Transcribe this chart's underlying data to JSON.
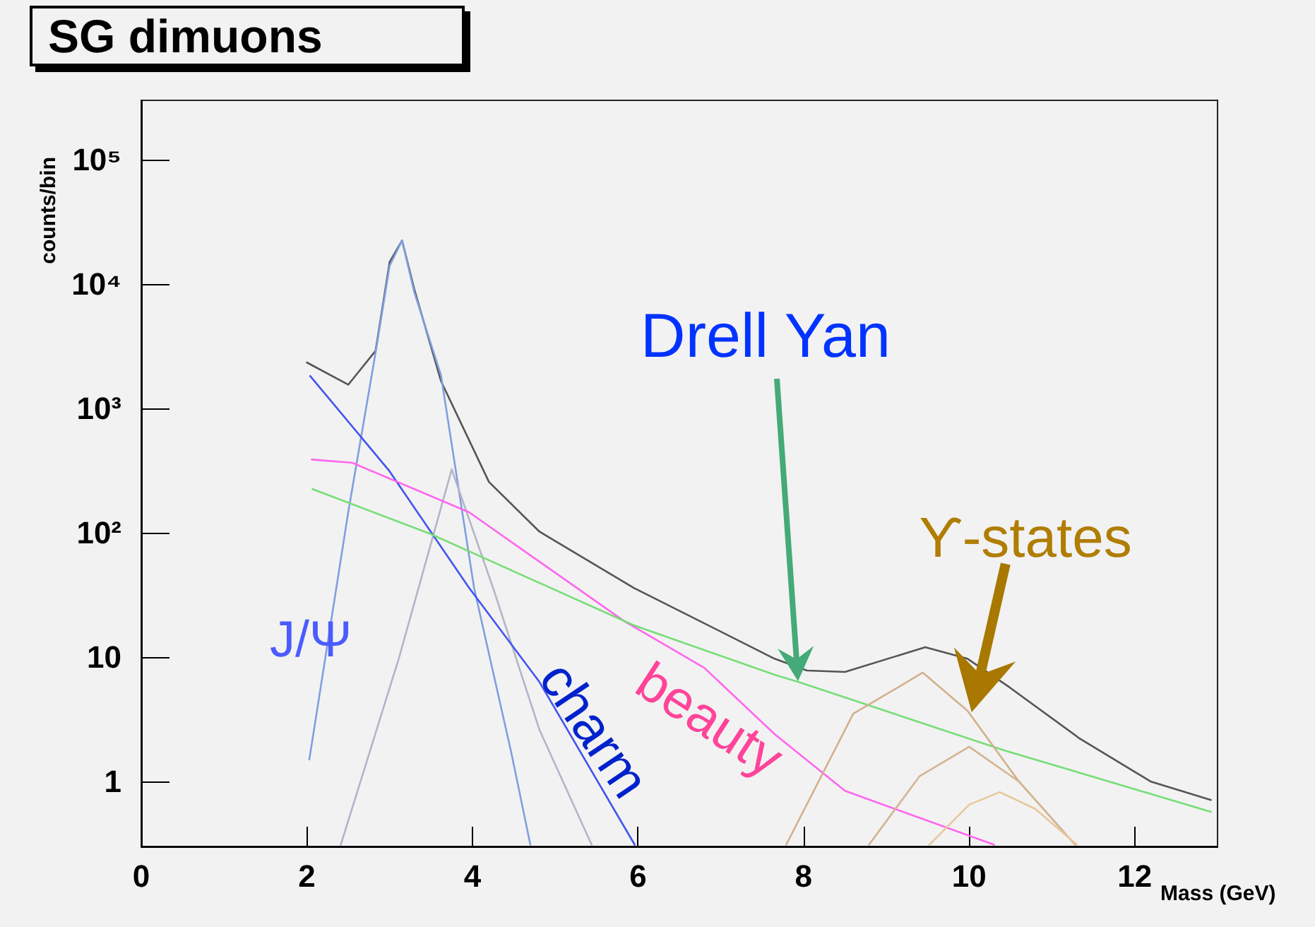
{
  "chart_data": {
    "type": "line",
    "title": "SG dimuons",
    "xlabel": "Mass (GeV)",
    "ylabel": "counts/bin",
    "log": "y",
    "grid": false,
    "marker": "none",
    "line_style": "solid",
    "xlim": [
      0,
      13
    ],
    "xticks": [
      0,
      2,
      4,
      6,
      8,
      10,
      12
    ],
    "ylim": [
      0.3,
      300000
    ],
    "yticks": [
      1,
      10,
      {
        "value": 100,
        "label": "10²"
      },
      {
        "value": 1000,
        "label": "10³"
      },
      {
        "value": 10000,
        "label": "10⁴"
      },
      {
        "value": 100000,
        "label": "10⁵"
      }
    ],
    "series": [
      {
        "color": "#555555",
        "x": [
          2.0,
          2.5,
          2.83,
          3.0,
          3.15,
          3.3,
          3.62,
          4.2,
          4.81,
          5.95,
          7.65,
          8.04,
          8.5,
          9.47,
          9.98,
          10.49,
          11.34,
          12.19,
          12.92
        ],
        "values": [
          2340,
          1550,
          2900,
          15000,
          22400,
          9000,
          1660,
          256,
          102,
          36,
          9.7,
          7.8,
          7.6,
          12,
          9.7,
          5.7,
          2.2,
          1.0,
          0.71
        ]
      },
      {
        "color": "#809ee0",
        "x": [
          2.03,
          2.5,
          2.83,
          3.0,
          3.15,
          3.3,
          3.62,
          4.02,
          4.47,
          4.7
        ],
        "values": [
          1.5,
          146,
          2800,
          14000,
          22400,
          8500,
          1850,
          36,
          1.7,
          0.31
        ]
      },
      {
        "color": "#b4b4c8",
        "x": [
          2.41,
          3.11,
          3.75,
          4.25,
          4.81,
          5.44
        ],
        "values": [
          0.31,
          9.7,
          323,
          36,
          2.6,
          0.31
        ]
      },
      {
        "color": "#4455ee",
        "x": [
          2.04,
          2.99,
          3.96,
          4.81,
          5.96
        ],
        "values": [
          1820,
          318,
          36,
          6.3,
          0.31
        ]
      },
      {
        "color": "#ff66ee",
        "x": [
          2.06,
          2.55,
          3.96,
          5.83,
          6.8,
          7.65,
          8.5,
          10.3
        ],
        "values": [
          388,
          365,
          146,
          19.5,
          8.2,
          2.4,
          0.84,
          0.31
        ]
      },
      {
        "color": "#77dd77",
        "x": [
          2.07,
          3.49,
          5.95,
          7.65,
          7.94,
          10.43,
          12.92
        ],
        "values": [
          224,
          98,
          18,
          7.2,
          6.3,
          1.77,
          0.57
        ]
      },
      {
        "color": "#d2b08c",
        "x": [
          7.79,
          8.6,
          9.44,
          9.98,
          10.6,
          11.28
        ],
        "values": [
          0.31,
          3.5,
          7.5,
          3.7,
          1.0,
          0.31
        ]
      },
      {
        "color": "#d4b494",
        "x": [
          8.79,
          9.4,
          10.0,
          10.6,
          11.28
        ],
        "values": [
          0.31,
          1.1,
          1.9,
          1.0,
          0.31
        ]
      },
      {
        "color": "#e8c89a",
        "x": [
          9.52,
          10.0,
          10.37,
          10.8,
          11.3
        ],
        "values": [
          0.31,
          0.65,
          0.82,
          0.6,
          0.31
        ]
      }
    ],
    "annotations": [
      "J/Ψ",
      "charm",
      "beauty",
      "Drell Yan",
      {
        "text": "ϒ-states",
        "x": 10.03,
        "y": 3.6
      }
    ]
  }
}
